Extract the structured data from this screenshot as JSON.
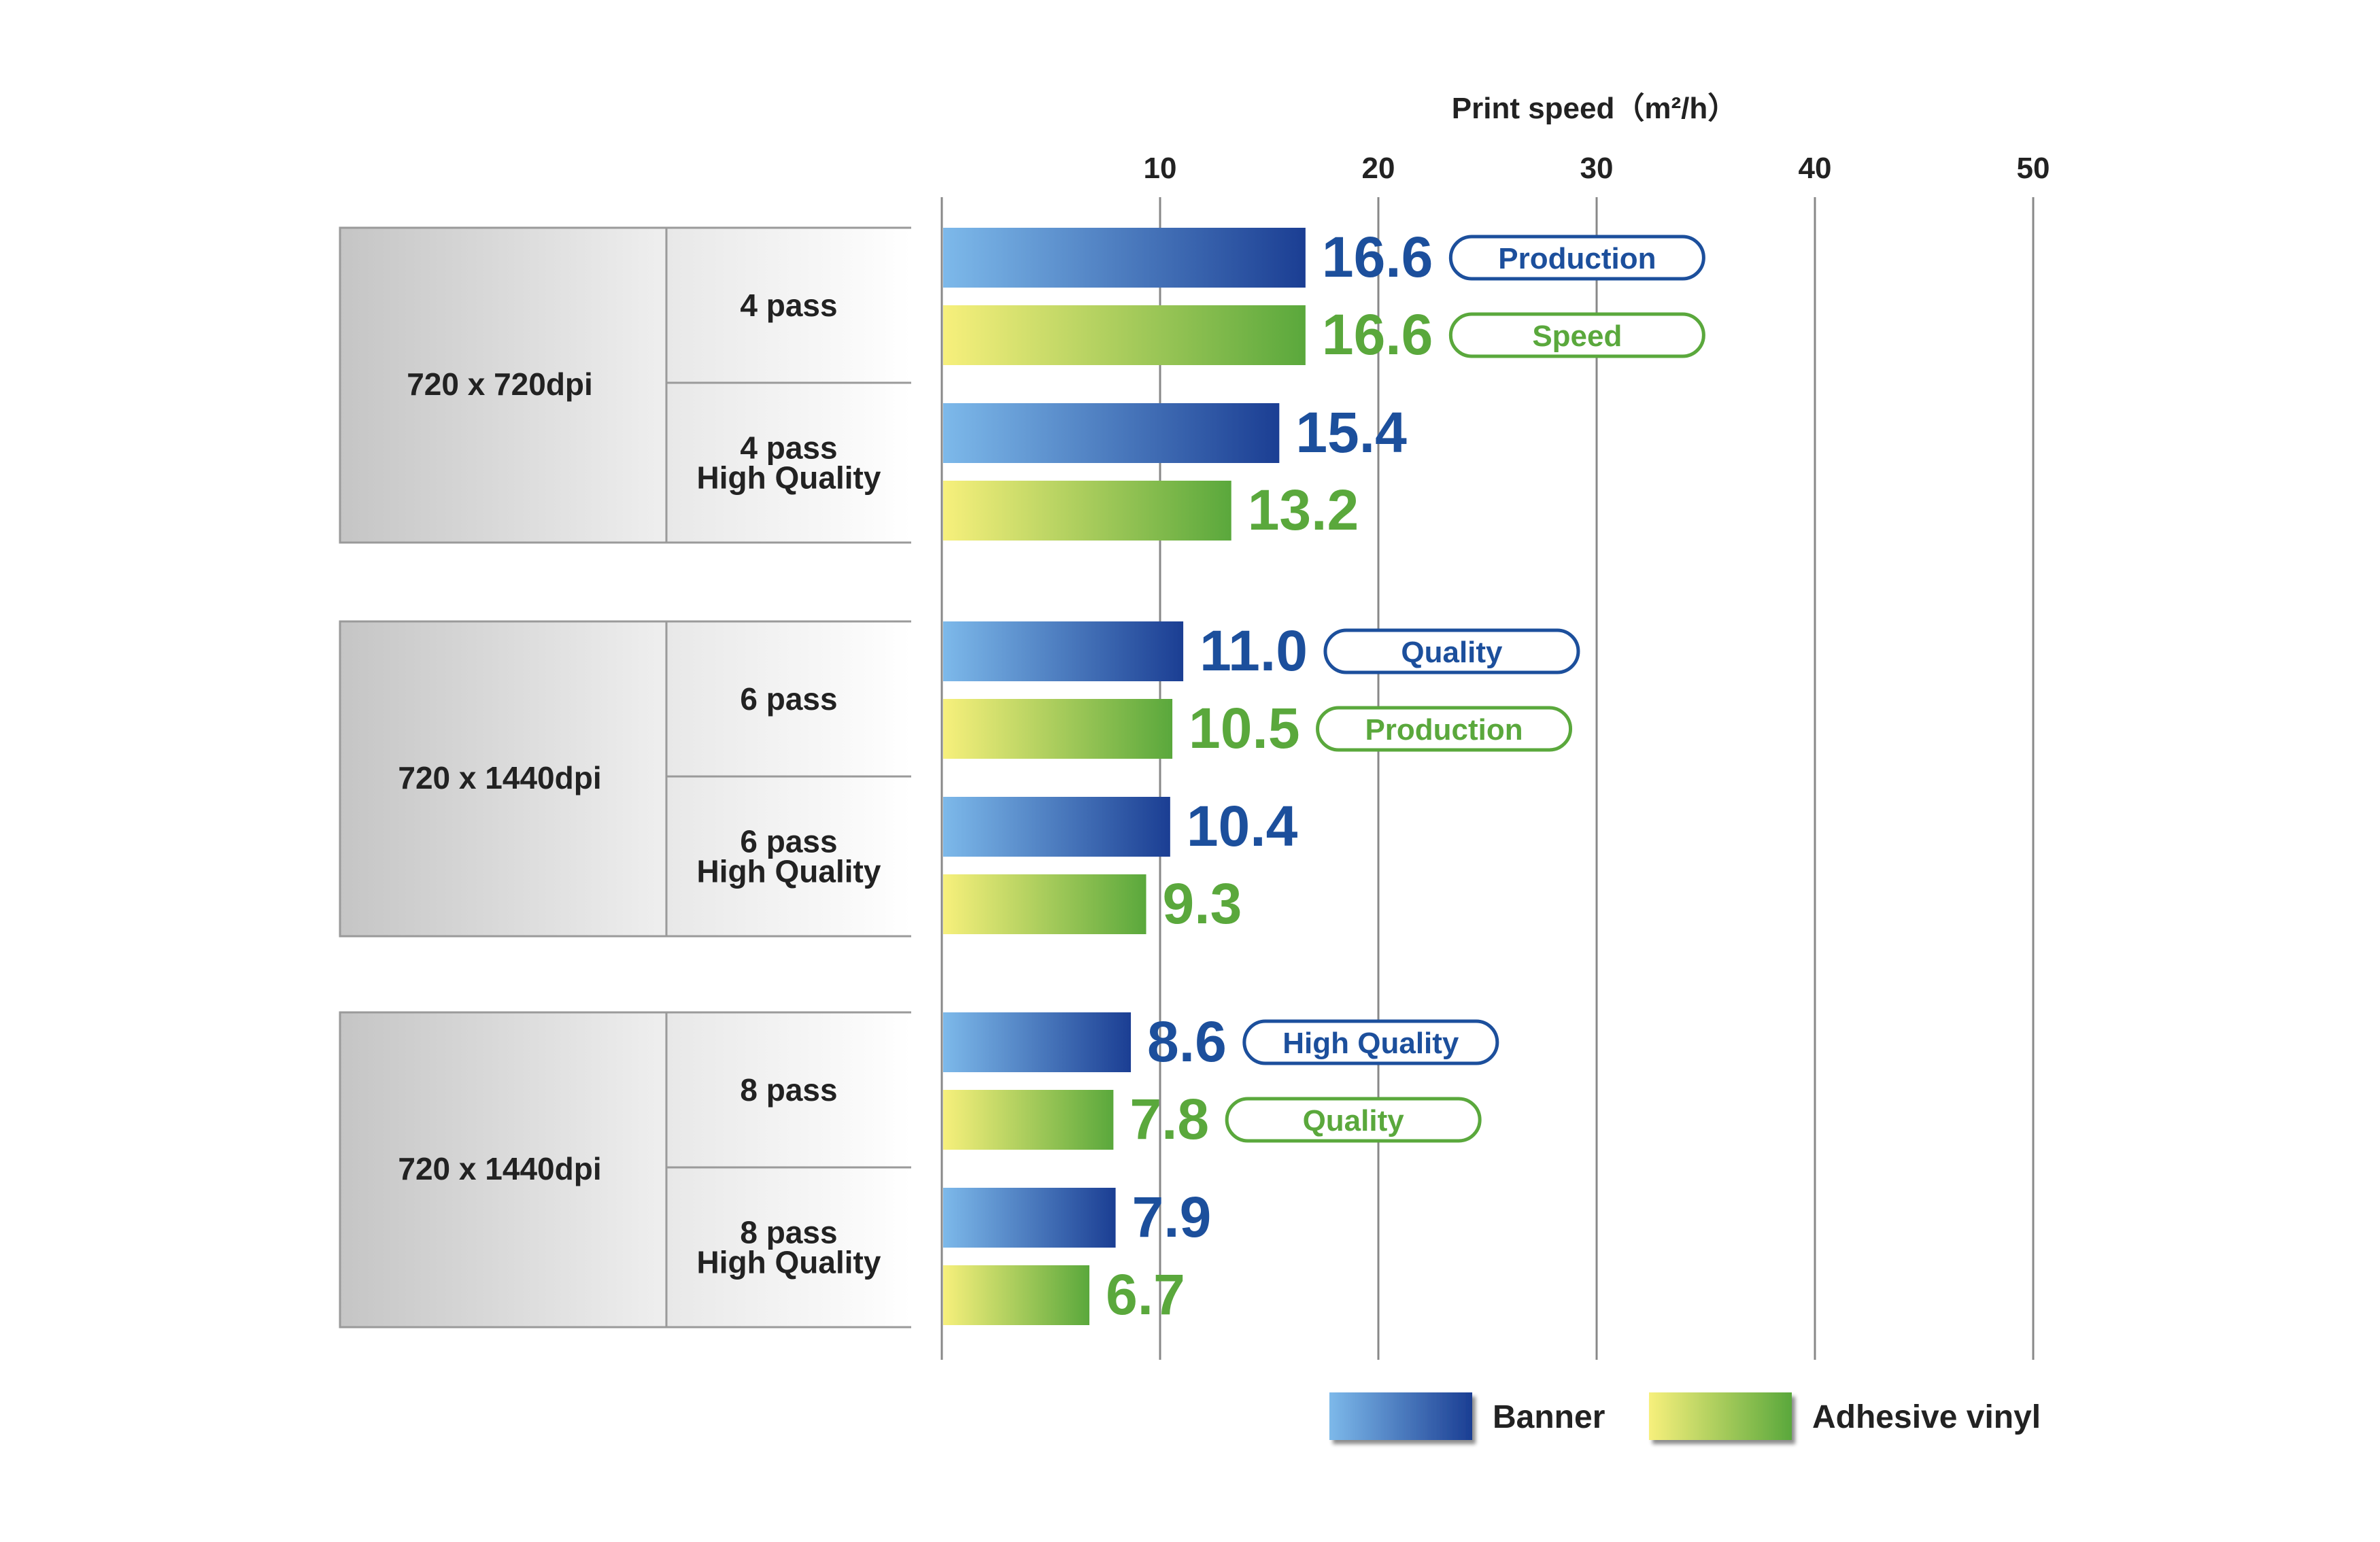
{
  "chart_data": {
    "type": "bar",
    "orientation": "horizontal",
    "axis_title": "Print speed（m²/h）",
    "xlim": [
      0,
      50
    ],
    "ticks": [
      "10",
      "20",
      "30",
      "40",
      "50"
    ],
    "grid": true,
    "legend_position": "bottom-right",
    "series": [
      {
        "name": "Banner",
        "color_start": "#7db9ea",
        "color_end": "#1b3e93",
        "label_color": "#1c4f9c"
      },
      {
        "name": "Adhesive vinyl",
        "color_start": "#f7f07c",
        "color_end": "#5aa83c",
        "label_color": "#5aa83c"
      }
    ],
    "groups": [
      {
        "resolution": "720 x 720dpi",
        "modes": [
          {
            "label": [
              "4 pass"
            ],
            "values": [
              16.6,
              16.6
            ],
            "value_labels": [
              "16.6",
              "16.6"
            ],
            "tags": [
              "Production",
              "Speed"
            ]
          },
          {
            "label": [
              "4 pass",
              "High Quality"
            ],
            "values": [
              15.4,
              13.2
            ],
            "value_labels": [
              "15.4",
              "13.2"
            ],
            "tags": [
              "",
              ""
            ]
          }
        ]
      },
      {
        "resolution": "720 x 1440dpi",
        "modes": [
          {
            "label": [
              "6 pass"
            ],
            "values": [
              11.0,
              10.5
            ],
            "value_labels": [
              "11.0",
              "10.5"
            ],
            "tags": [
              "Quality",
              "Production"
            ]
          },
          {
            "label": [
              "6 pass",
              "High Quality"
            ],
            "values": [
              10.4,
              9.3
            ],
            "value_labels": [
              "10.4",
              "9.3"
            ],
            "tags": [
              "",
              ""
            ]
          }
        ]
      },
      {
        "resolution": "720 x 1440dpi",
        "modes": [
          {
            "label": [
              "8 pass"
            ],
            "values": [
              8.6,
              7.8
            ],
            "value_labels": [
              "8.6",
              "7.8"
            ],
            "tags": [
              "High Quality",
              "Quality"
            ]
          },
          {
            "label": [
              "8 pass",
              "High Quality"
            ],
            "values": [
              7.9,
              6.7
            ],
            "value_labels": [
              "7.9",
              "6.7"
            ],
            "tags": [
              "",
              ""
            ]
          }
        ]
      }
    ]
  }
}
